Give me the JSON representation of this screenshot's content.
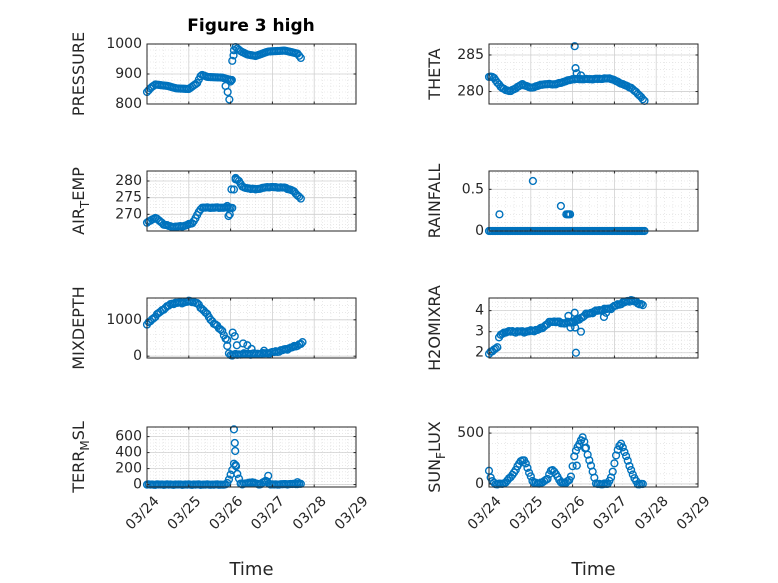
{
  "figure_title": "Figure 3 high",
  "marker_color": "#0072BD",
  "chart_data": [
    {
      "type": "scatter",
      "ylabel": "PRESSURE",
      "xlabel": "",
      "xlim": [
        0,
        5
      ],
      "ylim": [
        800,
        1000
      ],
      "yticks": [
        800,
        900,
        1000
      ],
      "yticklabels": [
        "800",
        "900",
        "1000"
      ],
      "xticks": [
        0,
        1,
        2,
        3,
        4,
        5
      ],
      "xticklabels": [],
      "grid": true,
      "knots": [
        [
          0,
          840
        ],
        [
          0.1,
          855
        ],
        [
          0.2,
          865
        ],
        [
          0.5,
          860
        ],
        [
          0.7,
          852
        ],
        [
          1.0,
          850
        ],
        [
          1.2,
          870
        ],
        [
          1.3,
          898
        ],
        [
          1.45,
          890
        ],
        [
          1.8,
          888
        ],
        [
          2.0,
          880
        ],
        [
          2.05,
          960
        ],
        [
          2.1,
          992
        ],
        [
          2.25,
          975
        ],
        [
          2.4,
          965
        ],
        [
          2.6,
          960
        ],
        [
          2.9,
          975
        ],
        [
          3.3,
          978
        ],
        [
          3.6,
          968
        ],
        [
          3.7,
          950
        ]
      ],
      "step": 0.04,
      "outliers": [
        [
          1.88,
          860
        ],
        [
          1.93,
          840
        ],
        [
          1.97,
          815
        ],
        [
          2.0,
          875
        ],
        [
          2.03,
          880
        ],
        [
          2.07,
          962
        ]
      ],
      "jitter": 0.012
    },
    {
      "type": "scatter",
      "ylabel": "THETA",
      "xlabel": "",
      "xlim": [
        0,
        5
      ],
      "ylim": [
        278.3,
        286.5
      ],
      "yticks": [
        280,
        285
      ],
      "yticklabels": [
        "280",
        "285"
      ],
      "xticks": [
        0,
        1,
        2,
        3,
        4,
        5
      ],
      "xticklabels": [],
      "grid": true,
      "knots": [
        [
          0,
          282
        ],
        [
          0.1,
          282
        ],
        [
          0.3,
          280.5
        ],
        [
          0.5,
          280
        ],
        [
          0.8,
          281
        ],
        [
          1.0,
          280.5
        ],
        [
          1.3,
          281
        ],
        [
          1.6,
          281
        ],
        [
          2.0,
          281.7
        ],
        [
          2.5,
          281.7
        ],
        [
          2.9,
          281.8
        ],
        [
          3.2,
          281
        ],
        [
          3.4,
          280.5
        ],
        [
          3.6,
          279.5
        ],
        [
          3.75,
          278.5
        ]
      ],
      "step": 0.04,
      "outliers": [
        [
          2.05,
          286.2
        ],
        [
          2.07,
          283.2
        ],
        [
          2.1,
          282.5
        ],
        [
          2.2,
          282.2
        ]
      ],
      "jitter": 0.05
    },
    {
      "type": "scatter",
      "ylabel": "AIR",
      "ylabel_sub": "T",
      "ylabel_rest": "EMP",
      "xlabel": "",
      "xlim": [
        0,
        5
      ],
      "ylim": [
        265,
        283
      ],
      "yticks": [
        270,
        275,
        280
      ],
      "yticklabels": [
        "270",
        "275",
        "280"
      ],
      "xticks": [
        0,
        1,
        2,
        3,
        4,
        5
      ],
      "xticklabels": [],
      "grid": true,
      "knots": [
        [
          0,
          267.5
        ],
        [
          0.2,
          269
        ],
        [
          0.4,
          267
        ],
        [
          0.6,
          266.2
        ],
        [
          0.9,
          266.5
        ],
        [
          1.1,
          267.5
        ],
        [
          1.3,
          272
        ],
        [
          1.6,
          272
        ],
        [
          1.9,
          272
        ],
        [
          2.05,
          272
        ],
        [
          2.1,
          281
        ],
        [
          2.2,
          280
        ],
        [
          2.3,
          278
        ],
        [
          2.6,
          277.5
        ],
        [
          2.9,
          278.2
        ],
        [
          3.3,
          278
        ],
        [
          3.5,
          277
        ],
        [
          3.7,
          274.5
        ]
      ],
      "step": 0.04,
      "outliers": [
        [
          1.92,
          272.5
        ],
        [
          1.95,
          269.5
        ],
        [
          1.98,
          270
        ],
        [
          2.02,
          277.5
        ],
        [
          2.12,
          280.5
        ]
      ],
      "jitter": 0.12
    },
    {
      "type": "scatter",
      "ylabel": "RAINFALL",
      "xlabel": "",
      "xlim": [
        0,
        5
      ],
      "ylim": [
        0,
        0.72
      ],
      "yticks": [
        0,
        0.5
      ],
      "yticklabels": [
        "0",
        "0.5"
      ],
      "xticks": [
        0,
        1,
        2,
        3,
        4,
        5
      ],
      "xticklabels": [],
      "grid": true,
      "knots": [
        [
          0,
          0
        ],
        [
          3.75,
          0
        ]
      ],
      "step": 0.04,
      "outliers": [
        [
          0.25,
          0.2
        ],
        [
          1.05,
          0.6
        ],
        [
          1.72,
          0.3
        ],
        [
          1.85,
          0.2
        ],
        [
          1.88,
          0.2
        ],
        [
          1.91,
          0.2
        ],
        [
          1.94,
          0.2
        ]
      ],
      "jitter": 0
    },
    {
      "type": "scatter",
      "ylabel": "MIXDEPTH",
      "xlabel": "",
      "xlim": [
        0,
        5
      ],
      "ylim": [
        -50,
        1600
      ],
      "yticks": [
        0,
        1000
      ],
      "yticklabels": [
        "0",
        "1000"
      ],
      "xticks": [
        0,
        1,
        2,
        3,
        4,
        5
      ],
      "xticklabels": [],
      "grid": true,
      "knots": [
        [
          0,
          870
        ],
        [
          0.2,
          1100
        ],
        [
          0.4,
          1300
        ],
        [
          0.6,
          1450
        ],
        [
          0.9,
          1480
        ],
        [
          1.05,
          1520
        ],
        [
          1.2,
          1450
        ],
        [
          1.4,
          1200
        ],
        [
          1.6,
          900
        ],
        [
          1.8,
          700
        ],
        [
          1.9,
          400
        ],
        [
          1.95,
          100
        ],
        [
          2.0,
          30
        ],
        [
          2.3,
          60
        ],
        [
          2.6,
          60
        ],
        [
          2.9,
          80
        ],
        [
          3.2,
          150
        ],
        [
          3.5,
          250
        ],
        [
          3.7,
          350
        ],
        [
          3.75,
          400
        ]
      ],
      "step": 0.04,
      "outliers": [
        [
          1.92,
          450
        ],
        [
          2.05,
          650
        ],
        [
          2.1,
          550
        ],
        [
          2.15,
          300
        ],
        [
          2.3,
          350
        ],
        [
          2.4,
          300
        ],
        [
          2.5,
          200
        ],
        [
          2.8,
          150
        ]
      ],
      "jitter": 25
    },
    {
      "type": "scatter",
      "ylabel": "H2OMIXRA",
      "xlabel": "",
      "xlim": [
        0,
        5
      ],
      "ylim": [
        1.75,
        4.6
      ],
      "yticks": [
        2,
        3,
        4
      ],
      "yticklabels": [
        "2",
        "3",
        "4"
      ],
      "xticks": [
        0,
        1,
        2,
        3,
        4,
        5
      ],
      "xticklabels": [],
      "grid": true,
      "knots": [
        [
          0,
          1.95
        ],
        [
          0.1,
          2.1
        ],
        [
          0.2,
          2.3
        ],
        [
          0.25,
          2.8
        ],
        [
          0.4,
          3.0
        ],
        [
          0.6,
          3.0
        ],
        [
          0.9,
          3.0
        ],
        [
          1.2,
          3.1
        ],
        [
          1.5,
          3.5
        ],
        [
          1.8,
          3.4
        ],
        [
          2.1,
          3.5
        ],
        [
          2.3,
          3.8
        ],
        [
          2.6,
          4.0
        ],
        [
          2.9,
          4.1
        ],
        [
          3.1,
          4.3
        ],
        [
          3.4,
          4.5
        ],
        [
          3.7,
          4.25
        ]
      ],
      "step": 0.04,
      "outliers": [
        [
          2.08,
          2.0
        ],
        [
          2.06,
          3.2
        ],
        [
          2.05,
          3.9
        ],
        [
          2.1,
          3.6
        ],
        [
          2.2,
          3.0
        ],
        [
          2.75,
          3.7
        ],
        [
          2.8,
          3.9
        ],
        [
          1.9,
          3.75
        ],
        [
          1.95,
          3.2
        ]
      ],
      "jitter": 0.05
    },
    {
      "type": "scatter",
      "ylabel": "TERR",
      "ylabel_sub": "M",
      "ylabel_rest": "SL",
      "xlabel": "Time",
      "xlim": [
        0,
        5
      ],
      "ylim": [
        -30,
        720
      ],
      "yticks": [
        0,
        200,
        400,
        600
      ],
      "yticklabels": [
        "0",
        "200",
        "400",
        "600"
      ],
      "xticks": [
        0,
        1,
        2,
        3,
        4,
        5
      ],
      "xticklabels": [
        "03/24",
        "03/25",
        "03/26",
        "03/27",
        "03/28",
        "03/29"
      ],
      "grid": true,
      "knots": [
        [
          0,
          0
        ],
        [
          1.9,
          0
        ],
        [
          1.95,
          50
        ],
        [
          2.05,
          200
        ],
        [
          2.1,
          300
        ],
        [
          2.15,
          150
        ],
        [
          2.25,
          0
        ],
        [
          2.5,
          30
        ],
        [
          2.7,
          0
        ],
        [
          2.85,
          50
        ],
        [
          2.95,
          0
        ],
        [
          3.7,
          10
        ]
      ],
      "step": 0.04,
      "outliers": [
        [
          2.08,
          690
        ],
        [
          2.1,
          520
        ],
        [
          2.11,
          420
        ],
        [
          2.13,
          230
        ],
        [
          2.9,
          110
        ],
        [
          3.6,
          30
        ]
      ],
      "jitter": 4
    },
    {
      "type": "scatter",
      "ylabel": "SUN",
      "ylabel_sub": "F",
      "ylabel_rest": "LUX",
      "xlabel": "Time",
      "xlim": [
        0,
        5
      ],
      "ylim": [
        -30,
        560
      ],
      "yticks": [
        0,
        500
      ],
      "yticklabels": [
        "0",
        "500"
      ],
      "xticks": [
        0,
        1,
        2,
        3,
        4,
        5
      ],
      "xticklabels": [
        "03/24",
        "03/25",
        "03/26",
        "03/27",
        "03/28",
        "03/29"
      ],
      "grid": true,
      "knots": [
        [
          0,
          130
        ],
        [
          0.05,
          40
        ],
        [
          0.15,
          0
        ],
        [
          0.35,
          0
        ],
        [
          0.55,
          80
        ],
        [
          0.75,
          220
        ],
        [
          0.85,
          240
        ],
        [
          0.95,
          120
        ],
        [
          1.05,
          20
        ],
        [
          1.2,
          0
        ],
        [
          1.4,
          50
        ],
        [
          1.5,
          150
        ],
        [
          1.6,
          100
        ],
        [
          1.7,
          20
        ],
        [
          1.85,
          10
        ],
        [
          1.95,
          50
        ],
        [
          2.05,
          300
        ],
        [
          2.25,
          470
        ],
        [
          2.35,
          300
        ],
        [
          2.5,
          100
        ],
        [
          2.55,
          0
        ],
        [
          2.85,
          0
        ],
        [
          2.95,
          100
        ],
        [
          3.05,
          300
        ],
        [
          3.15,
          410
        ],
        [
          3.3,
          250
        ],
        [
          3.45,
          80
        ],
        [
          3.55,
          0
        ],
        [
          3.7,
          0
        ]
      ],
      "step": 0.04,
      "outliers": [
        [
          2.2,
          430
        ],
        [
          2.3,
          350
        ],
        [
          2.1,
          180
        ]
      ],
      "jitter": 6
    }
  ]
}
